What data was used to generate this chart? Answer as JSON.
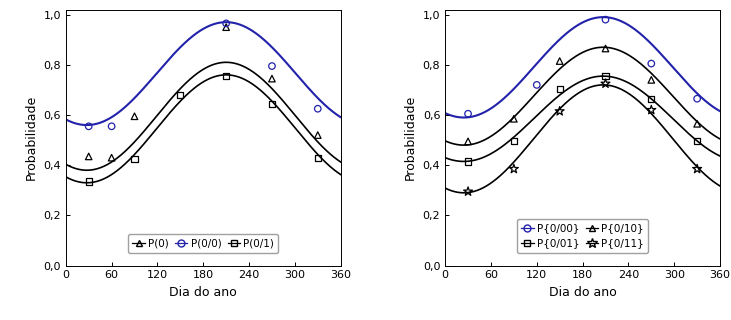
{
  "left": {
    "curves": [
      {
        "mean": 0.595,
        "amp": 0.215,
        "peak": 210,
        "period": 365,
        "color": "#000000",
        "lw": 1.2
      },
      {
        "mean": 0.765,
        "amp": 0.205,
        "peak": 210,
        "period": 365,
        "color": "#2222aa",
        "lw": 1.5
      },
      {
        "mean": 0.545,
        "amp": 0.215,
        "peak": 210,
        "period": 365,
        "color": "#000000",
        "lw": 1.2
      }
    ],
    "scatter": [
      {
        "x": [
          30,
          60,
          90,
          210,
          270,
          330
        ],
        "y": [
          0.435,
          0.43,
          0.595,
          0.95,
          0.745,
          0.52
        ],
        "marker": "^",
        "color": "#000000",
        "s": 22
      },
      {
        "x": [
          30,
          60,
          210,
          270,
          330
        ],
        "y": [
          0.555,
          0.555,
          0.965,
          0.795,
          0.625
        ],
        "marker": "o",
        "color": "#2222aa",
        "s": 22
      },
      {
        "x": [
          30,
          90,
          150,
          210,
          270,
          330
        ],
        "y": [
          0.335,
          0.425,
          0.68,
          0.755,
          0.645,
          0.43
        ],
        "marker": "s",
        "color": "#000000",
        "s": 20
      }
    ],
    "legend": [
      {
        "label": "P(0)",
        "marker": "^",
        "color": "#000000"
      },
      {
        "label": "P(0/0)",
        "marker": "o",
        "color": "#2222aa"
      },
      {
        "label": "P(0/1)",
        "marker": "s",
        "color": "#000000"
      }
    ],
    "ytick_labels": [
      "0,0",
      "0,2",
      "0,4",
      "0,6",
      "0,8",
      "1,0"
    ],
    "yticks": [
      0.0,
      0.2,
      0.4,
      0.6,
      0.8,
      1.0
    ],
    "xticks": [
      0,
      60,
      120,
      180,
      240,
      300,
      360
    ],
    "ylim": [
      0.0,
      1.02
    ],
    "ylabel": "Probabilidade",
    "xlabel": "Dia do ano"
  },
  "right": {
    "curves": [
      {
        "mean": 0.79,
        "amp": 0.2,
        "peak": 207,
        "period": 365,
        "color": "#2222aa",
        "lw": 1.5
      },
      {
        "mean": 0.675,
        "amp": 0.195,
        "peak": 207,
        "period": 365,
        "color": "#000000",
        "lw": 1.2
      },
      {
        "mean": 0.585,
        "amp": 0.17,
        "peak": 207,
        "period": 365,
        "color": "#000000",
        "lw": 1.2
      },
      {
        "mean": 0.505,
        "amp": 0.215,
        "peak": 207,
        "period": 365,
        "color": "#000000",
        "lw": 1.2
      }
    ],
    "scatter": [
      {
        "x": [
          30,
          120,
          210,
          270,
          330
        ],
        "y": [
          0.605,
          0.72,
          0.98,
          0.805,
          0.665
        ],
        "marker": "o",
        "color": "#2222aa",
        "s": 22
      },
      {
        "x": [
          30,
          90,
          150,
          210,
          270,
          330
        ],
        "y": [
          0.495,
          0.585,
          0.815,
          0.865,
          0.74,
          0.565
        ],
        "marker": "^",
        "color": "#000000",
        "s": 22
      },
      {
        "x": [
          30,
          90,
          150,
          210,
          270,
          330
        ],
        "y": [
          0.415,
          0.495,
          0.705,
          0.755,
          0.665,
          0.495
        ],
        "marker": "s",
        "color": "#000000",
        "s": 20
      },
      {
        "x": [
          30,
          90,
          150,
          210,
          270,
          330
        ],
        "y": [
          0.295,
          0.385,
          0.615,
          0.725,
          0.62,
          0.385
        ],
        "marker": "*",
        "color": "#000000",
        "s": 45
      }
    ],
    "legend": [
      {
        "label": "P{0/00}",
        "marker": "o",
        "color": "#2222aa"
      },
      {
        "label": "P{0/01}",
        "marker": "s",
        "color": "#000000"
      },
      {
        "label": "P{0/10}",
        "marker": "^",
        "color": "#000000"
      },
      {
        "label": "P{0/11}",
        "marker": "*",
        "color": "#000000"
      }
    ],
    "ytick_labels": [
      "0,0",
      "0,2",
      "0,4",
      "0,6",
      "0,8",
      "1,0"
    ],
    "yticks": [
      0.0,
      0.2,
      0.4,
      0.6,
      0.8,
      1.0
    ],
    "xticks": [
      0,
      60,
      120,
      180,
      240,
      300,
      360
    ],
    "ylim": [
      0.0,
      1.02
    ],
    "ylabel": "Probabilidade",
    "xlabel": "Dia do ano"
  }
}
